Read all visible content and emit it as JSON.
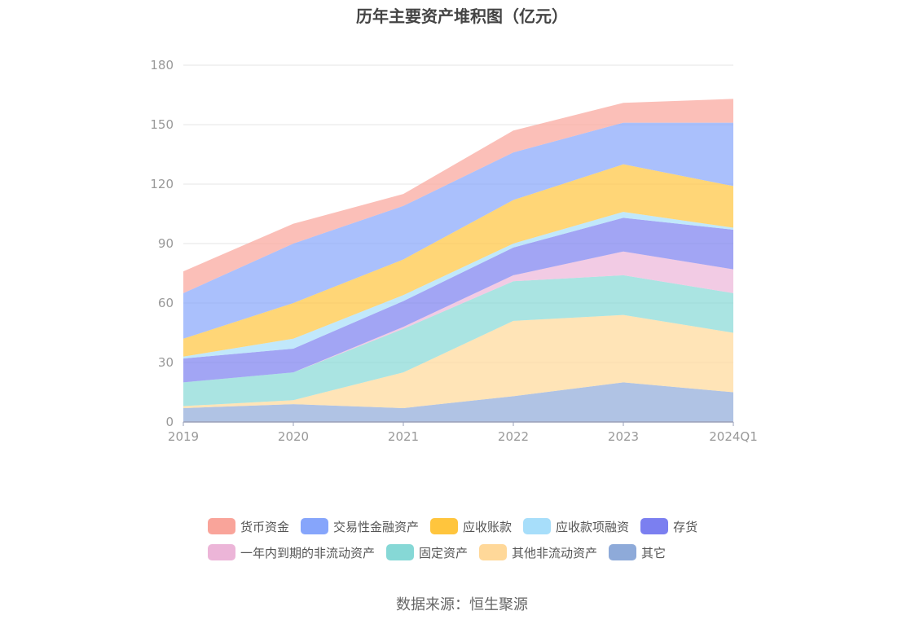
{
  "chart_data": {
    "type": "area",
    "stacked": true,
    "title": "历年主要资产堆积图（亿元）",
    "categories": [
      "2019",
      "2020",
      "2021",
      "2022",
      "2023",
      "2024Q1"
    ],
    "ylim": [
      0,
      180
    ],
    "yticks": [
      0,
      30,
      60,
      90,
      120,
      150,
      180
    ],
    "grid": true,
    "legend_position": "bottom",
    "series": [
      {
        "name": "其它",
        "color": "#8eaad9",
        "values": [
          7,
          9,
          7,
          13,
          20,
          15
        ]
      },
      {
        "name": "其他非流动资产",
        "color": "#ffd899",
        "values": [
          1,
          2,
          18,
          38,
          34,
          30
        ]
      },
      {
        "name": "固定资产",
        "color": "#86d8d6",
        "values": [
          12,
          14,
          22,
          20,
          20,
          20
        ]
      },
      {
        "name": "一年内到期的非流动资产",
        "color": "#ecb5d8",
        "values": [
          0,
          0,
          1,
          3,
          12,
          12
        ]
      },
      {
        "name": "存货",
        "color": "#7b7ff0",
        "values": [
          12,
          12,
          13,
          14,
          17,
          20
        ]
      },
      {
        "name": "应收款项融资",
        "color": "#a7defa",
        "values": [
          1,
          5,
          3,
          2,
          3,
          1
        ]
      },
      {
        "name": "应收账款",
        "color": "#ffc53d",
        "values": [
          9,
          18,
          18,
          22,
          24,
          21
        ]
      },
      {
        "name": "交易性金融资产",
        "color": "#86a5fb",
        "values": [
          23,
          30,
          27,
          24,
          21,
          32
        ]
      },
      {
        "name": "货币资金",
        "color": "#f9a49a",
        "values": [
          11,
          10,
          6,
          11,
          10,
          12
        ]
      }
    ]
  },
  "legend": {
    "rows": [
      [
        {
          "name": "货币资金",
          "color": "#f9a49a"
        },
        {
          "name": "交易性金融资产",
          "color": "#86a5fb"
        },
        {
          "name": "应收账款",
          "color": "#ffc53d"
        },
        {
          "name": "应收款项融资",
          "color": "#a7defa"
        },
        {
          "name": "存货",
          "color": "#7b7ff0"
        }
      ],
      [
        {
          "name": "一年内到期的非流动资产",
          "color": "#ecb5d8"
        },
        {
          "name": "固定资产",
          "color": "#86d8d6"
        },
        {
          "name": "其他非流动资产",
          "color": "#ffd899"
        },
        {
          "name": "其它",
          "color": "#8eaad9"
        }
      ]
    ]
  },
  "source": "数据来源：恒生聚源"
}
